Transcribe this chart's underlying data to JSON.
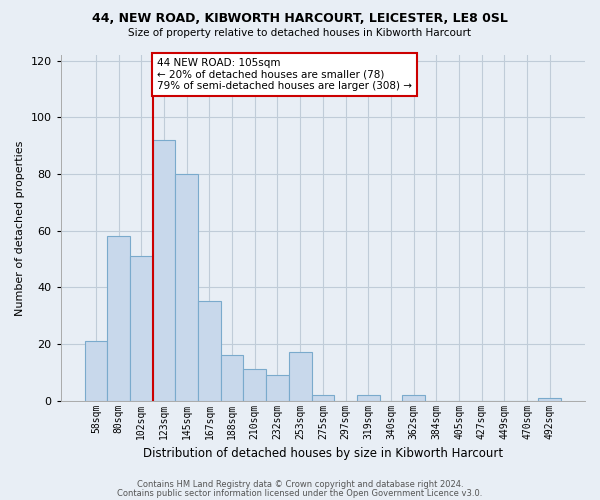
{
  "title1": "44, NEW ROAD, KIBWORTH HARCOURT, LEICESTER, LE8 0SL",
  "title2": "Size of property relative to detached houses in Kibworth Harcourt",
  "xlabel": "Distribution of detached houses by size in Kibworth Harcourt",
  "ylabel": "Number of detached properties",
  "bar_labels": [
    "58sqm",
    "80sqm",
    "102sqm",
    "123sqm",
    "145sqm",
    "167sqm",
    "188sqm",
    "210sqm",
    "232sqm",
    "253sqm",
    "275sqm",
    "297sqm",
    "319sqm",
    "340sqm",
    "362sqm",
    "384sqm",
    "405sqm",
    "427sqm",
    "449sqm",
    "470sqm",
    "492sqm"
  ],
  "bar_values": [
    21,
    58,
    51,
    92,
    80,
    35,
    16,
    11,
    9,
    17,
    2,
    0,
    2,
    0,
    2,
    0,
    0,
    0,
    0,
    0,
    1
  ],
  "bar_color": "#c8d8eb",
  "bar_edge_color": "#7aaacc",
  "vline_x": 2.5,
  "vline_color": "#cc0000",
  "annotation_text": "44 NEW ROAD: 105sqm\n← 20% of detached houses are smaller (78)\n79% of semi-detached houses are larger (308) →",
  "annotation_box_color": "#ffffff",
  "annotation_box_edge": "#cc0000",
  "ylim": [
    0,
    122
  ],
  "yticks": [
    0,
    20,
    40,
    60,
    80,
    100,
    120
  ],
  "footer1": "Contains HM Land Registry data © Crown copyright and database right 2024.",
  "footer2": "Contains public sector information licensed under the Open Government Licence v3.0.",
  "bg_color": "#e8eef5",
  "plot_bg_color": "#e8eef5",
  "grid_color": "#c0ccd8"
}
